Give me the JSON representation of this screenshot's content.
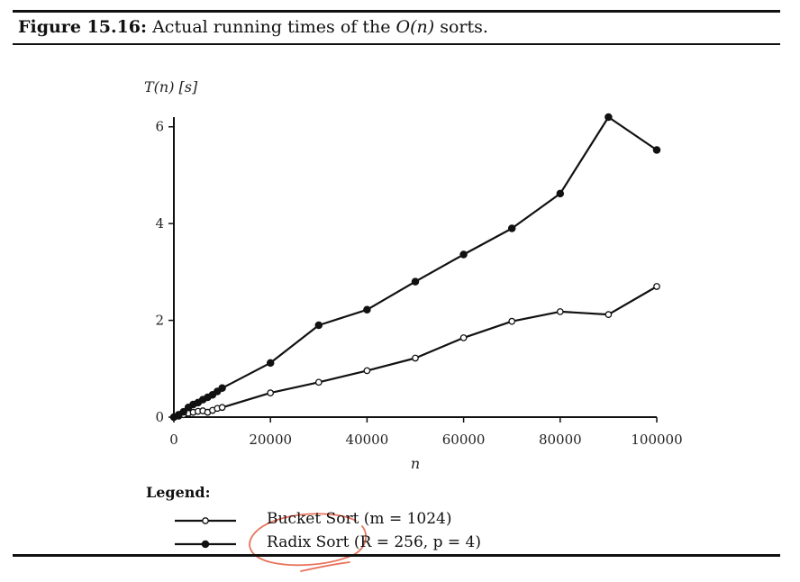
{
  "caption": {
    "label": "Figure 15.16:",
    "text_before": "Actual running times of the",
    "math": "O(n)",
    "text_after": "sorts."
  },
  "chart_data": {
    "type": "line",
    "ylabel": "T(n) [s]",
    "xlabel": "n",
    "xlim": [
      0,
      100000
    ],
    "ylim": [
      0,
      6.2
    ],
    "xticks": [
      0,
      20000,
      40000,
      60000,
      80000,
      100000
    ],
    "yticks": [
      0,
      2,
      4,
      6
    ],
    "grid": false,
    "legend_title": "Legend:",
    "legend_position": "bottom-left",
    "series": [
      {
        "name": "Bucket Sort (m = 1024)",
        "marker": "open-circle",
        "points": [
          [
            0,
            0
          ],
          [
            1000,
            0.02
          ],
          [
            2000,
            0.05
          ],
          [
            3000,
            0.08
          ],
          [
            4000,
            0.1
          ],
          [
            5000,
            0.12
          ],
          [
            6000,
            0.13
          ],
          [
            7000,
            0.1
          ],
          [
            8000,
            0.14
          ],
          [
            9000,
            0.18
          ],
          [
            10000,
            0.2
          ],
          [
            20000,
            0.5
          ],
          [
            30000,
            0.72
          ],
          [
            40000,
            0.96
          ],
          [
            50000,
            1.22
          ],
          [
            60000,
            1.64
          ],
          [
            70000,
            1.98
          ],
          [
            80000,
            2.18
          ],
          [
            90000,
            2.12
          ],
          [
            100000,
            2.7
          ]
        ]
      },
      {
        "name": "Radix Sort (R = 256, p = 4)",
        "marker": "filled-circle",
        "points": [
          [
            0,
            0
          ],
          [
            1000,
            0.05
          ],
          [
            2000,
            0.11
          ],
          [
            3000,
            0.2
          ],
          [
            4000,
            0.26
          ],
          [
            5000,
            0.3
          ],
          [
            6000,
            0.36
          ],
          [
            7000,
            0.41
          ],
          [
            8000,
            0.46
          ],
          [
            9000,
            0.53
          ],
          [
            10000,
            0.6
          ],
          [
            20000,
            1.12
          ],
          [
            30000,
            1.9
          ],
          [
            40000,
            2.22
          ],
          [
            50000,
            2.8
          ],
          [
            60000,
            3.36
          ],
          [
            70000,
            3.9
          ],
          [
            80000,
            4.62
          ],
          [
            90000,
            6.2
          ],
          [
            100000,
            5.52
          ]
        ]
      }
    ]
  },
  "annotation": {
    "color": "#e8735c"
  }
}
